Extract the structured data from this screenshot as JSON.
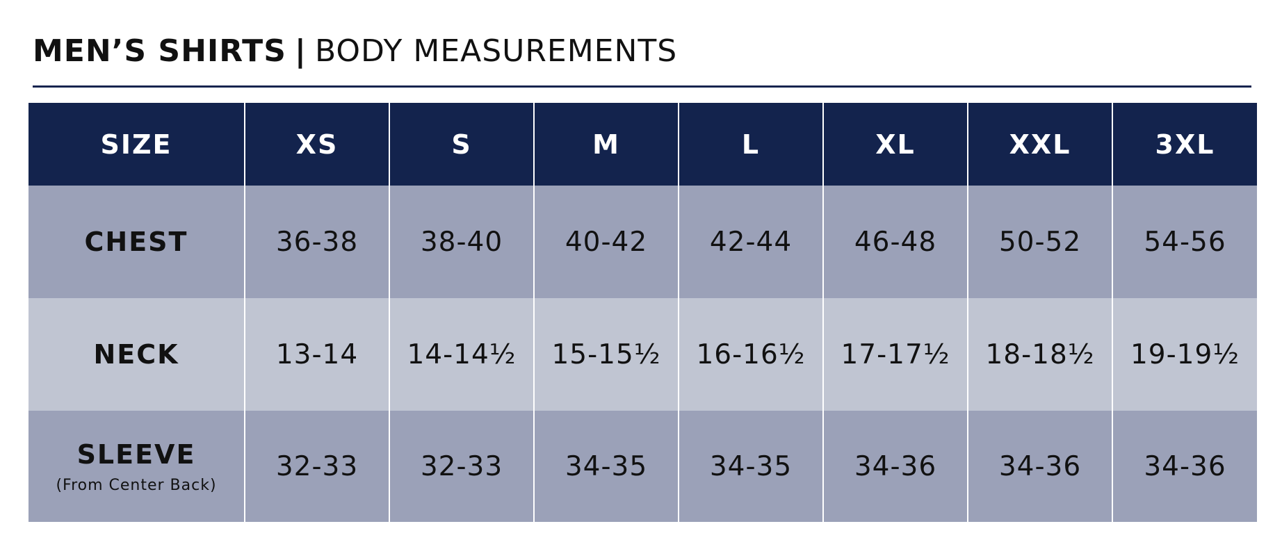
{
  "title": {
    "bold": "MEN’S SHIRTS",
    "separator": "|",
    "normal": "BODY MEASUREMENTS"
  },
  "table": {
    "header": [
      "SIZE",
      "XS",
      "S",
      "M",
      "L",
      "XL",
      "XXL",
      "3XL"
    ],
    "rows": [
      {
        "label": "CHEST",
        "sublabel": "",
        "values": [
          "36-38",
          "38-40",
          "40-42",
          "42-44",
          "46-48",
          "50-52",
          "54-56"
        ]
      },
      {
        "label": "NECK",
        "sublabel": "",
        "values": [
          "13-14",
          "14-14½",
          "15-15½",
          "16-16½",
          "17-17½",
          "18-18½",
          "19-19½"
        ]
      },
      {
        "label": "SLEEVE",
        "sublabel": "(From Center Back)",
        "values": [
          "32-33",
          "32-33",
          "34-35",
          "34-35",
          "34-36",
          "34-36",
          "34-36"
        ]
      }
    ]
  },
  "colors": {
    "header_bg": "#13234d",
    "row_dark": "#9ba1b8",
    "row_light": "#c0c5d2",
    "rule": "#15244f"
  }
}
